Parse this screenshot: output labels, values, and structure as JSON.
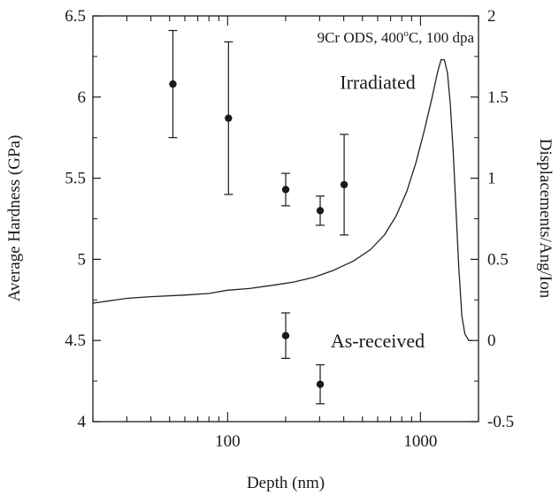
{
  "chart_data": {
    "type": "scatter",
    "title": "9Cr ODS, 400°C, 100 dpa",
    "title_parts": {
      "pre": "9Cr ODS, 400",
      "sup": "o",
      "post": "C, 100 dpa"
    },
    "xlabel": "Depth (nm)",
    "ylabel": "Average Hardness (GPa)",
    "y2label": "Displacements/Ang/Ion",
    "xscale": "log",
    "xlim": [
      20,
      2000
    ],
    "ylim": [
      4,
      6.5
    ],
    "y2lim": [
      -0.5,
      2
    ],
    "grid": false,
    "x_ticks": [
      {
        "v": 100,
        "label": "100"
      },
      {
        "v": 1000,
        "label": "1000"
      }
    ],
    "y_ticks": [
      {
        "v": 4,
        "label": "4"
      },
      {
        "v": 4.5,
        "label": "4.5"
      },
      {
        "v": 5,
        "label": "5"
      },
      {
        "v": 5.5,
        "label": "5.5"
      },
      {
        "v": 6,
        "label": "6"
      },
      {
        "v": 6.5,
        "label": "6.5"
      }
    ],
    "y2_ticks": [
      {
        "v": -0.5,
        "label": "-0.5"
      },
      {
        "v": 0,
        "label": "0"
      },
      {
        "v": 0.5,
        "label": "0.5"
      },
      {
        "v": 1,
        "label": "1"
      },
      {
        "v": 1.5,
        "label": "1.5"
      },
      {
        "v": 2,
        "label": "2"
      }
    ],
    "series": [
      {
        "name": "Irradiated",
        "axis": "left",
        "kind": "points-errorbars",
        "points": [
          {
            "x": 52,
            "y": 6.08,
            "err": 0.33
          },
          {
            "x": 101,
            "y": 5.87,
            "err": 0.47
          },
          {
            "x": 200,
            "y": 5.43,
            "err": 0.1
          },
          {
            "x": 302,
            "y": 5.3,
            "err": 0.09
          },
          {
            "x": 402,
            "y": 5.46,
            "err": 0.31
          }
        ]
      },
      {
        "name": "As-received",
        "axis": "left",
        "kind": "points-errorbars",
        "points": [
          {
            "x": 200,
            "y": 4.53,
            "err": 0.14
          },
          {
            "x": 302,
            "y": 4.23,
            "err": 0.12
          }
        ]
      },
      {
        "name": "",
        "axis": "right",
        "kind": "line",
        "points": [
          {
            "x": 20,
            "y": 0.23
          },
          {
            "x": 30,
            "y": 0.26
          },
          {
            "x": 40,
            "y": 0.27
          },
          {
            "x": 60,
            "y": 0.28
          },
          {
            "x": 80,
            "y": 0.29
          },
          {
            "x": 100,
            "y": 0.31
          },
          {
            "x": 130,
            "y": 0.32
          },
          {
            "x": 170,
            "y": 0.34
          },
          {
            "x": 220,
            "y": 0.36
          },
          {
            "x": 280,
            "y": 0.39
          },
          {
            "x": 350,
            "y": 0.43
          },
          {
            "x": 450,
            "y": 0.49
          },
          {
            "x": 550,
            "y": 0.56
          },
          {
            "x": 650,
            "y": 0.65
          },
          {
            "x": 750,
            "y": 0.77
          },
          {
            "x": 850,
            "y": 0.92
          },
          {
            "x": 950,
            "y": 1.1
          },
          {
            "x": 1050,
            "y": 1.3
          },
          {
            "x": 1150,
            "y": 1.5
          },
          {
            "x": 1230,
            "y": 1.66
          },
          {
            "x": 1280,
            "y": 1.73
          },
          {
            "x": 1330,
            "y": 1.73
          },
          {
            "x": 1380,
            "y": 1.65
          },
          {
            "x": 1430,
            "y": 1.45
          },
          {
            "x": 1480,
            "y": 1.15
          },
          {
            "x": 1530,
            "y": 0.8
          },
          {
            "x": 1580,
            "y": 0.45
          },
          {
            "x": 1640,
            "y": 0.15
          },
          {
            "x": 1700,
            "y": 0.04
          },
          {
            "x": 1780,
            "y": 0.0
          },
          {
            "x": 1860,
            "y": 0.0
          }
        ]
      }
    ],
    "annotations": [
      {
        "text": "Irradiated",
        "x": 600,
        "y": 6.05
      },
      {
        "text": "As-received",
        "x": 600,
        "y": 4.5
      }
    ]
  }
}
